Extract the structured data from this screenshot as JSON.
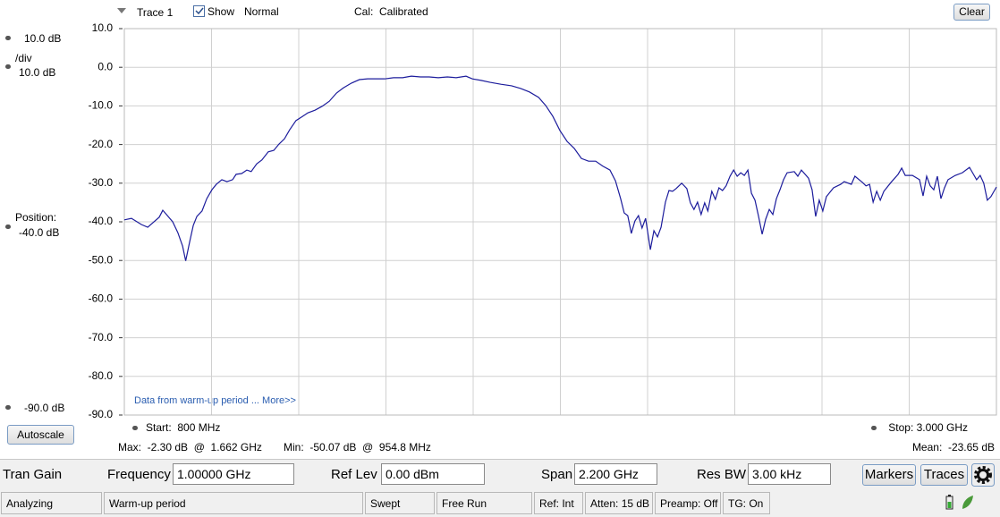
{
  "toolbar": {
    "trace": "Trace 1",
    "show": "Show",
    "mode": "Normal",
    "cal_label": "Cal:",
    "cal_value": "Calibrated",
    "clear": "Clear"
  },
  "scale_panel": {
    "top": "10.0 dB",
    "div_label": "/div",
    "div_value": "10.0 dB",
    "position_label": "Position:",
    "position_value": "-40.0 dB",
    "bottom": "-90.0 dB",
    "autoscale": "Autoscale"
  },
  "chart_data": {
    "type": "line",
    "annotation": "Data from warm-up period ... More>>",
    "x": [
      800,
      818,
      843,
      859,
      888,
      897,
      922,
      935,
      947,
      954.8,
      965,
      974,
      983,
      996,
      1008,
      1021,
      1032,
      1046,
      1059,
      1073,
      1082,
      1096,
      1109,
      1120,
      1134,
      1147,
      1163,
      1177,
      1190,
      1204,
      1217,
      1233,
      1247,
      1263,
      1281,
      1299,
      1317,
      1335,
      1353,
      1373,
      1393,
      1414,
      1434,
      1457,
      1479,
      1502,
      1524,
      1547,
      1569,
      1592,
      1615,
      1637,
      1662,
      1678,
      1700,
      1723,
      1750,
      1777,
      1800,
      1822,
      1845,
      1863,
      1881,
      1899,
      1917,
      1935,
      1953,
      1971,
      1989,
      2007,
      2025,
      2039,
      2052,
      2061,
      2070,
      2079,
      2088,
      2097,
      2106,
      2115,
      2127,
      2136,
      2145,
      2154,
      2165,
      2174,
      2183,
      2192,
      2206,
      2219,
      2228,
      2237,
      2246,
      2255,
      2264,
      2272,
      2282,
      2291,
      2300,
      2309,
      2318,
      2328,
      2337,
      2346,
      2355,
      2364,
      2373,
      2382,
      2391,
      2400,
      2409,
      2418,
      2427,
      2436,
      2445,
      2454,
      2463,
      2472,
      2490,
      2499,
      2508,
      2526,
      2535,
      2544,
      2553,
      2562,
      2571,
      2589,
      2607,
      2616,
      2634,
      2643,
      2662,
      2671,
      2680,
      2689,
      2698,
      2707,
      2716,
      2734,
      2752,
      2761,
      2770,
      2788,
      2806,
      2815,
      2824,
      2833,
      2842,
      2851,
      2860,
      2869,
      2878,
      2896,
      2914,
      2932,
      2941,
      2950,
      2959,
      2968,
      2977,
      2986,
      3000
    ],
    "series": [
      {
        "color": "#1c1c9c",
        "values": [
          -39.5,
          -39.1,
          -40.7,
          -41.4,
          -38.8,
          -37.0,
          -40.0,
          -42.8,
          -46.3,
          -50.1,
          -45.1,
          -40.9,
          -38.6,
          -37.2,
          -34.0,
          -31.7,
          -30.3,
          -29.1,
          -29.6,
          -29.1,
          -27.7,
          -27.5,
          -26.6,
          -27.0,
          -25.0,
          -24.0,
          -21.9,
          -21.5,
          -19.9,
          -18.5,
          -16.2,
          -13.8,
          -12.9,
          -11.8,
          -11.1,
          -10.1,
          -8.8,
          -6.7,
          -5.3,
          -4.1,
          -3.2,
          -3.0,
          -3.0,
          -3.0,
          -2.7,
          -2.7,
          -2.3,
          -2.5,
          -2.5,
          -2.7,
          -2.5,
          -2.7,
          -2.3,
          -3.0,
          -3.4,
          -3.9,
          -4.4,
          -4.8,
          -5.5,
          -6.4,
          -7.8,
          -9.9,
          -12.7,
          -16.4,
          -19.2,
          -21.0,
          -23.6,
          -24.3,
          -24.3,
          -25.6,
          -26.6,
          -29.4,
          -34.0,
          -37.7,
          -38.4,
          -43.0,
          -39.8,
          -38.4,
          -41.6,
          -39.1,
          -47.2,
          -42.3,
          -43.9,
          -41.4,
          -34.9,
          -31.9,
          -32.1,
          -31.4,
          -30.0,
          -31.4,
          -35.1,
          -36.8,
          -34.9,
          -38.1,
          -35.1,
          -37.2,
          -32.1,
          -34.2,
          -31.2,
          -31.9,
          -30.7,
          -28.2,
          -26.6,
          -28.2,
          -27.3,
          -28.0,
          -26.6,
          -32.6,
          -34.4,
          -38.6,
          -43.2,
          -39.3,
          -36.8,
          -38.1,
          -34.0,
          -31.7,
          -29.1,
          -27.3,
          -27.0,
          -28.2,
          -26.6,
          -28.7,
          -31.7,
          -38.6,
          -34.4,
          -37.2,
          -33.5,
          -31.2,
          -30.3,
          -29.6,
          -30.3,
          -28.2,
          -29.8,
          -30.7,
          -30.3,
          -34.9,
          -32.1,
          -34.4,
          -32.1,
          -29.8,
          -27.7,
          -26.1,
          -28.0,
          -28.0,
          -29.1,
          -33.3,
          -28.2,
          -30.7,
          -31.7,
          -28.2,
          -34.0,
          -31.2,
          -29.1,
          -28.0,
          -27.3,
          -25.9,
          -27.5,
          -29.1,
          -28.0,
          -30.0,
          -34.4,
          -33.5,
          -31.0
        ]
      }
    ],
    "xlim": [
      800,
      3000
    ],
    "ylim": [
      -90,
      10
    ],
    "yticks": [
      {
        "value": 10,
        "label": "10.0"
      },
      {
        "value": 0,
        "label": "0.0"
      },
      {
        "value": -10,
        "label": "-10.0"
      },
      {
        "value": -20,
        "label": "-20.0"
      },
      {
        "value": -30,
        "label": "-30.0"
      },
      {
        "value": -40,
        "label": "-40.0"
      },
      {
        "value": -50,
        "label": "-50.0"
      },
      {
        "value": -60,
        "label": "-60.0"
      },
      {
        "value": -70,
        "label": "-70.0"
      },
      {
        "value": -80,
        "label": "-80.0"
      },
      {
        "value": -90,
        "label": "-90.0"
      }
    ],
    "grid": true
  },
  "readouts": {
    "start": "Start:  800 MHz",
    "stop": "Stop: 3.000 GHz",
    "max": "Max:  -2.30 dB  @  1.662 GHz",
    "min": "Min:  -50.07 dB  @  954.8 MHz",
    "mean": "Mean:  -23.65 dB"
  },
  "controls": {
    "mode": "Tran Gain",
    "fields": [
      {
        "label": "Frequency",
        "value": "1.00000 GHz"
      },
      {
        "label": "Ref Lev",
        "value": "0.00 dBm"
      },
      {
        "label": "Span",
        "value": "2.200 GHz"
      },
      {
        "label": "Res BW",
        "value": "3.00 kHz"
      }
    ],
    "buttons": [
      "Markers",
      "Traces"
    ]
  },
  "status_bar": [
    "Analyzing",
    "Warm-up period",
    "Swept",
    "Free Run",
    "Ref: Int",
    "Atten: 15 dB",
    "Preamp: Off",
    "TG: On"
  ]
}
